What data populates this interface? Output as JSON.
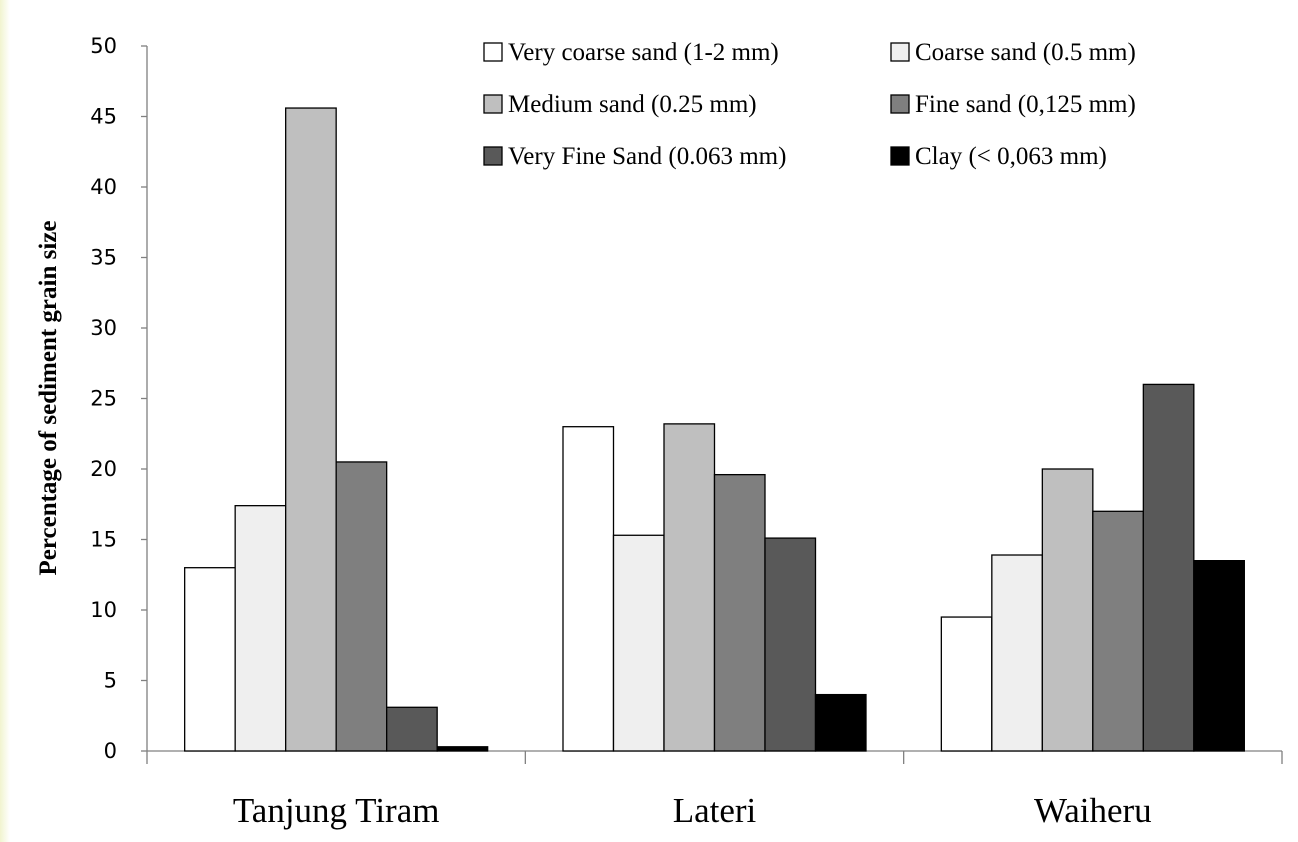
{
  "chart_data": {
    "type": "bar",
    "title": "",
    "xlabel": "",
    "ylabel": "Percentage of sediment grain size",
    "ylim": [
      0,
      50
    ],
    "yticks": [
      "0",
      "5",
      "10",
      "15",
      "20",
      "25",
      "30",
      "35",
      "40",
      "45",
      "50"
    ],
    "grid": false,
    "legend_position": "top-right",
    "categories": [
      "Tanjung Tiram",
      "Lateri",
      "Waiheru"
    ],
    "series": [
      {
        "name": "Very coarse sand (1-2 mm)",
        "color": "#ffffff",
        "values": [
          13.0,
          23.0,
          9.5
        ]
      },
      {
        "name": "Coarse sand (0.5 mm)",
        "color": "#efefef",
        "values": [
          17.4,
          15.3,
          13.9
        ]
      },
      {
        "name": "Medium sand (0.25 mm)",
        "color": "#bfbfbf",
        "values": [
          45.6,
          23.2,
          20.0
        ]
      },
      {
        "name": "Fine sand (0,125 mm)",
        "color": "#7f7f7f",
        "values": [
          20.5,
          19.6,
          17.0
        ]
      },
      {
        "name": "Very Fine Sand (0.063 mm)",
        "color": "#595959",
        "values": [
          3.1,
          15.1,
          26.0
        ]
      },
      {
        "name": "Clay (< 0,063 mm)",
        "color": "#000000",
        "values": [
          0.3,
          4.0,
          13.5
        ]
      }
    ]
  }
}
